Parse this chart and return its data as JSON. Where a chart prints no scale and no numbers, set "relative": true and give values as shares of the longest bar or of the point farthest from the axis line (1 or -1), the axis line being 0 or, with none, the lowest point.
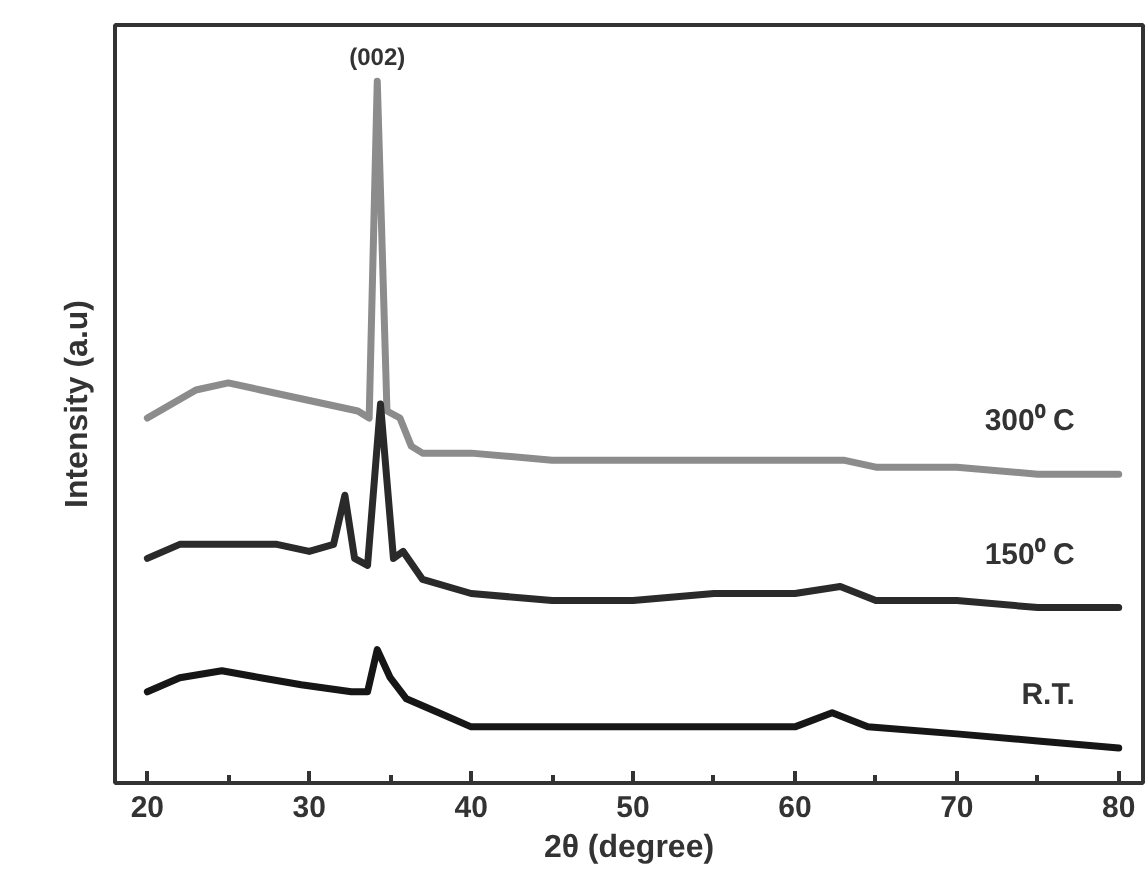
{
  "chart_data": {
    "type": "line",
    "relative": true,
    "xlabel": "2θ (degree)",
    "ylabel": "Intensity (a.u)",
    "xlim": [
      18,
      81.5
    ],
    "xticks": [
      20,
      {
        "value": 25,
        "label": null
      },
      30,
      {
        "value": 35,
        "label": null
      },
      40,
      {
        "value": 45,
        "label": null
      },
      50,
      {
        "value": 55,
        "label": null
      },
      60,
      {
        "value": 65,
        "label": null
      },
      70,
      {
        "value": 75,
        "label": null
      },
      80
    ],
    "grid": false,
    "annotations": [
      {
        "text": "(002)",
        "x": 34.2,
        "y": 1.0
      }
    ],
    "series": [
      {
        "name": "300⁰ C",
        "color": "#8c8c8c",
        "x": [
          20,
          21.5,
          23,
          25,
          27,
          29,
          31,
          33,
          33.7,
          34.2,
          34.8,
          35.6,
          36.3,
          37,
          40,
          45,
          50,
          55,
          60,
          63,
          65,
          70,
          75,
          80
        ],
        "values": [
          0.52,
          0.54,
          0.56,
          0.57,
          0.56,
          0.55,
          0.54,
          0.53,
          0.52,
          1.0,
          0.53,
          0.52,
          0.48,
          0.47,
          0.47,
          0.46,
          0.46,
          0.46,
          0.46,
          0.46,
          0.45,
          0.45,
          0.44,
          0.44
        ]
      },
      {
        "name": "150⁰ C",
        "color": "#2a2a2a",
        "x": [
          20,
          22,
          25,
          28,
          30,
          31.5,
          32.2,
          32.8,
          33.6,
          34.4,
          35.2,
          35.8,
          37,
          40,
          45,
          50,
          55,
          60,
          62.8,
          65,
          70,
          75,
          80
        ],
        "values": [
          0.32,
          0.34,
          0.34,
          0.34,
          0.33,
          0.34,
          0.41,
          0.32,
          0.31,
          0.54,
          0.32,
          0.33,
          0.29,
          0.27,
          0.26,
          0.26,
          0.27,
          0.27,
          0.28,
          0.26,
          0.26,
          0.25,
          0.25
        ]
      },
      {
        "name": "R.T.",
        "color": "#161616",
        "x": [
          20,
          22,
          24.6,
          27,
          29.5,
          32.6,
          33.6,
          34.2,
          35,
          36,
          38,
          40,
          43,
          46,
          50,
          55,
          60,
          62.3,
          64.5,
          70,
          75,
          80
        ],
        "values": [
          0.13,
          0.15,
          0.16,
          0.15,
          0.14,
          0.13,
          0.13,
          0.19,
          0.15,
          0.12,
          0.1,
          0.08,
          0.08,
          0.08,
          0.08,
          0.08,
          0.08,
          0.1,
          0.08,
          0.07,
          0.06,
          0.05
        ]
      }
    ]
  }
}
